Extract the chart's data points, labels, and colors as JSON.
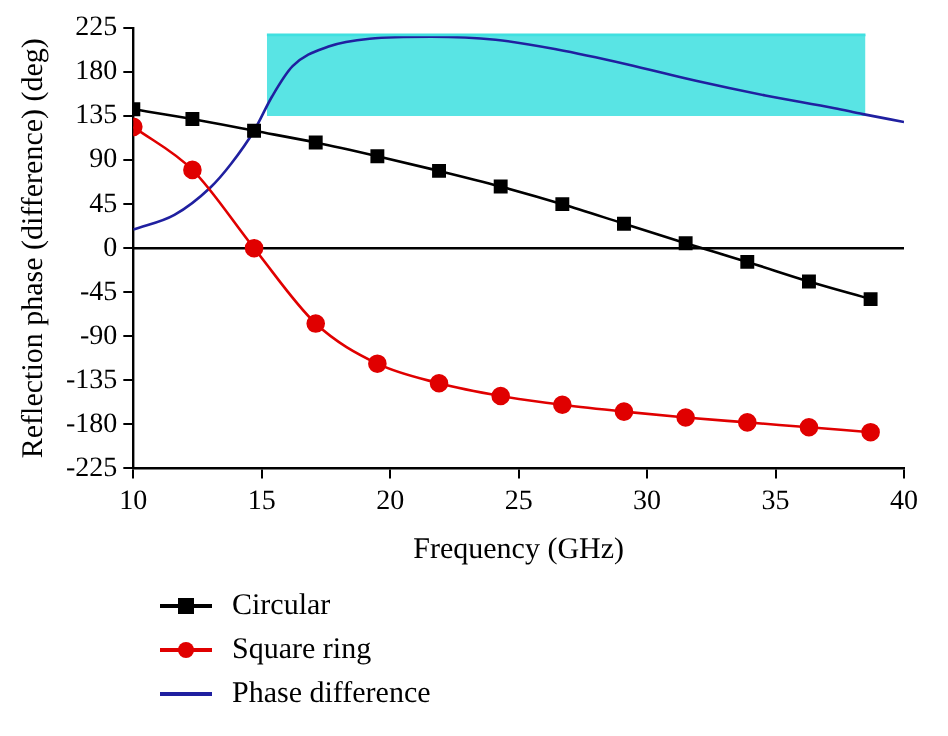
{
  "chart_data": {
    "type": "line",
    "xlabel": "Frequency (GHz)",
    "ylabel": "Reflection phase (difference) (deg)",
    "xlim": [
      10,
      40
    ],
    "xticks": [
      10,
      15,
      20,
      25,
      30,
      35,
      40
    ],
    "ylim": [
      -225,
      225
    ],
    "yticks": [
      -225,
      -180,
      -135,
      -90,
      -45,
      0,
      45,
      90,
      135,
      180,
      225
    ],
    "grid": false,
    "legend": "bottom",
    "ref_lines": [
      {
        "axis": "y",
        "value": 0,
        "color": "#000000"
      }
    ],
    "series": [
      {
        "color": "#40e0e0",
        "marker": "none",
        "x": [
          15.2,
          38.5
        ],
        "values": [
          218,
          218
        ],
        "lower": [
          135,
          135
        ],
        "upper": [
          218,
          218
        ]
      },
      {
        "name": "Circular",
        "color": "#000000",
        "marker": "square",
        "x": [
          10,
          12.3,
          14.7,
          17.1,
          19.5,
          21.9,
          24.3,
          26.7,
          29.1,
          31.5,
          33.9,
          36.3,
          38.7
        ],
        "values": [
          142,
          132,
          120,
          108,
          94,
          79,
          63,
          45,
          25,
          5,
          -14,
          -34,
          -52
        ]
      },
      {
        "name": "Square ring",
        "color": "#e00000",
        "marker": "circle",
        "x": [
          10,
          12.3,
          14.7,
          17.1,
          19.5,
          21.9,
          24.3,
          26.7,
          29.1,
          31.5,
          33.9,
          36.3,
          38.7
        ],
        "values": [
          124,
          80,
          0,
          -77,
          -118,
          -138,
          -151,
          -160,
          -167,
          -173,
          -178,
          -183,
          -188
        ]
      },
      {
        "name": "Phase difference",
        "color": "#2020a0",
        "marker": "none",
        "x": [
          10,
          11.6,
          13,
          13.8,
          14.7,
          15.4,
          16.2,
          17.6,
          19.2,
          21.6,
          24.1,
          26.5,
          29.2,
          31.9,
          34.6,
          37.3,
          38.4,
          40
        ],
        "values": [
          19,
          34,
          62,
          86,
          120,
          155,
          186,
          206,
          214,
          216,
          213,
          203,
          188,
          171,
          156,
          143,
          137,
          129
        ]
      }
    ]
  }
}
